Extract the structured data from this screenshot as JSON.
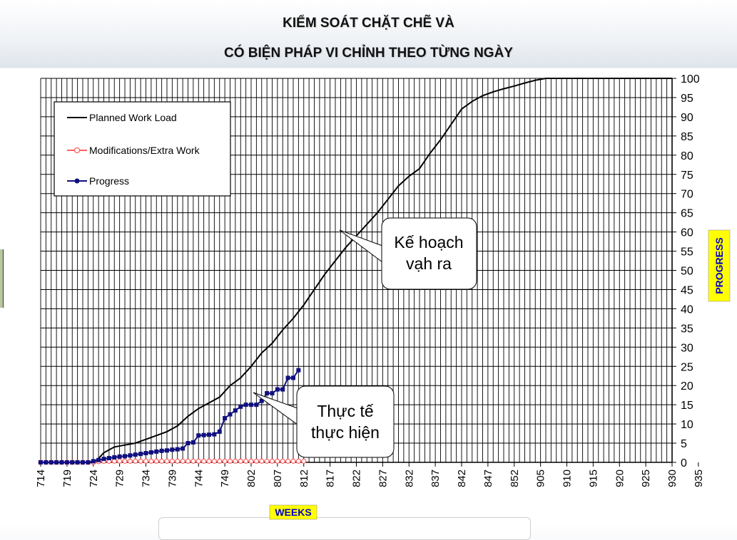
{
  "title": {
    "line1": "KIỂM SOÁT CHẶT CHẼ VÀ",
    "line2": "CÓ BIỆN PHÁP VI CHỈNH THEO TỪNG NGÀY"
  },
  "callouts": {
    "plan": [
      "Kế hoạch",
      "vạh ra"
    ],
    "actual": [
      "Thực tế",
      "thực hiện"
    ]
  },
  "colors": {
    "planned": "#000000",
    "modifications": "#ff6060",
    "progress": "#101080",
    "axis_label_bg": "#ffff00",
    "axis_label_text": "#0000cc"
  },
  "chart_data": {
    "type": "line",
    "xlabel": "WEEKS",
    "ylabel": "PROGRESS",
    "ylim": [
      0,
      100
    ],
    "y_ticks": [
      0,
      5,
      10,
      15,
      20,
      25,
      30,
      35,
      40,
      45,
      50,
      55,
      60,
      65,
      70,
      75,
      80,
      85,
      90,
      95,
      100
    ],
    "x_tick_labels": [
      "714",
      "719",
      "724",
      "729",
      "734",
      "739",
      "744",
      "749",
      "802",
      "807",
      "812",
      "817",
      "822",
      "827",
      "832",
      "837",
      "842",
      "847",
      "852",
      "905",
      "910",
      "915",
      "920",
      "925",
      "930",
      "935"
    ],
    "legend_position": "top-left",
    "grid": true,
    "series": [
      {
        "name": "Planned Work Load",
        "style": "line",
        "points": [
          [
            0,
            0
          ],
          [
            10,
            0
          ],
          [
            11,
            1
          ],
          [
            12,
            2.5
          ],
          [
            14,
            4
          ],
          [
            16,
            4.5
          ],
          [
            18,
            5
          ],
          [
            20,
            6
          ],
          [
            22,
            7
          ],
          [
            24,
            8
          ],
          [
            26,
            9.5
          ],
          [
            28,
            12
          ],
          [
            30,
            14
          ],
          [
            32,
            15.5
          ],
          [
            34,
            17
          ],
          [
            36,
            20
          ],
          [
            38,
            22
          ],
          [
            40,
            25
          ],
          [
            42,
            28.5
          ],
          [
            44,
            31
          ],
          [
            46,
            34.5
          ],
          [
            48,
            37.5
          ],
          [
            50,
            41
          ],
          [
            52,
            45
          ],
          [
            54,
            49
          ],
          [
            56,
            52.5
          ],
          [
            58,
            56
          ],
          [
            60,
            59
          ],
          [
            62,
            62
          ],
          [
            64,
            65
          ],
          [
            66,
            68.5
          ],
          [
            68,
            72
          ],
          [
            70,
            74.5
          ],
          [
            72,
            76.5
          ],
          [
            74,
            80.5
          ],
          [
            76,
            84
          ],
          [
            78,
            88
          ],
          [
            80,
            92
          ],
          [
            82,
            94
          ],
          [
            84,
            95.5
          ],
          [
            86,
            96.5
          ],
          [
            88,
            97.3
          ],
          [
            90,
            98
          ],
          [
            92,
            98.8
          ],
          [
            94,
            99.5
          ],
          [
            96,
            100
          ],
          [
            120,
            100
          ]
        ]
      },
      {
        "name": "Modifications/Extra Work",
        "style": "line-markers-hollow",
        "points": [
          [
            0,
            0
          ],
          [
            1,
            0
          ],
          [
            2,
            0
          ],
          [
            3,
            0
          ],
          [
            4,
            0
          ],
          [
            5,
            0
          ],
          [
            6,
            0
          ],
          [
            7,
            0
          ],
          [
            8,
            0
          ],
          [
            9,
            0
          ],
          [
            10,
            0
          ],
          [
            11,
            0.2
          ],
          [
            12,
            0.3
          ],
          [
            13,
            0.3
          ],
          [
            14,
            0.3
          ],
          [
            15,
            0.3
          ],
          [
            16,
            0.3
          ],
          [
            17,
            0.3
          ],
          [
            18,
            0.3
          ],
          [
            19,
            0.3
          ],
          [
            20,
            0.3
          ],
          [
            21,
            0.3
          ],
          [
            22,
            0.3
          ],
          [
            23,
            0.3
          ],
          [
            24,
            0.3
          ],
          [
            25,
            0.3
          ],
          [
            26,
            0.3
          ],
          [
            27,
            0.3
          ],
          [
            28,
            0.3
          ],
          [
            29,
            0.3
          ],
          [
            30,
            0.3
          ],
          [
            31,
            0.3
          ],
          [
            32,
            0.3
          ],
          [
            33,
            0.3
          ],
          [
            34,
            0.3
          ],
          [
            35,
            0.3
          ],
          [
            36,
            0.3
          ],
          [
            37,
            0.3
          ],
          [
            38,
            0.3
          ],
          [
            39,
            0.3
          ],
          [
            40,
            0.3
          ],
          [
            41,
            0.3
          ],
          [
            42,
            0.3
          ],
          [
            43,
            0.3
          ],
          [
            44,
            0.3
          ],
          [
            45,
            0.3
          ],
          [
            46,
            0.3
          ],
          [
            47,
            0.3
          ],
          [
            48,
            0.3
          ],
          [
            49,
            0.3
          ],
          [
            50,
            0.3
          ]
        ]
      },
      {
        "name": "Progress",
        "style": "line-markers-filled",
        "points": [
          [
            0,
            0
          ],
          [
            1,
            0
          ],
          [
            2,
            0
          ],
          [
            3,
            0
          ],
          [
            4,
            0
          ],
          [
            5,
            0
          ],
          [
            6,
            0
          ],
          [
            7,
            0
          ],
          [
            8,
            0
          ],
          [
            9,
            0
          ],
          [
            10,
            0.3
          ],
          [
            11,
            0.6
          ],
          [
            12,
            0.9
          ],
          [
            13,
            1.1
          ],
          [
            14,
            1.3
          ],
          [
            15,
            1.5
          ],
          [
            16,
            1.6
          ],
          [
            17,
            1.8
          ],
          [
            18,
            2
          ],
          [
            19,
            2.2
          ],
          [
            20,
            2.4
          ],
          [
            21,
            2.6
          ],
          [
            22,
            2.8
          ],
          [
            23,
            3
          ],
          [
            24,
            3.1
          ],
          [
            25,
            3.3
          ],
          [
            26,
            3.4
          ],
          [
            27,
            3.6
          ],
          [
            28,
            5
          ],
          [
            29,
            5.2
          ],
          [
            30,
            7
          ],
          [
            31,
            7.1
          ],
          [
            32,
            7.2
          ],
          [
            33,
            7.3
          ],
          [
            34,
            8
          ],
          [
            35,
            11.5
          ],
          [
            36,
            12.5
          ],
          [
            37,
            13.5
          ],
          [
            38,
            14.5
          ],
          [
            39,
            15
          ],
          [
            40,
            15
          ],
          [
            41,
            15
          ],
          [
            42,
            16
          ],
          [
            43,
            18
          ],
          [
            44,
            18
          ],
          [
            45,
            19
          ],
          [
            46,
            19
          ],
          [
            47,
            22
          ],
          [
            48,
            22
          ],
          [
            49,
            24
          ]
        ]
      }
    ]
  }
}
